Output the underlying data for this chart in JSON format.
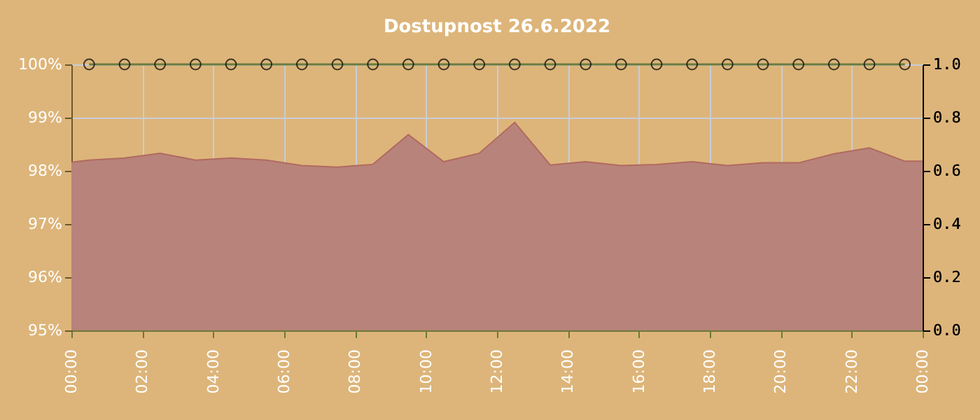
{
  "chart_data": {
    "type": "area",
    "title": "Dostupnost 26.6.2022",
    "x": [
      0,
      0.5,
      1.5,
      2.5,
      3.5,
      4.5,
      5.5,
      6.5,
      7.5,
      8.5,
      9.5,
      10.5,
      11.5,
      12.5,
      13.5,
      14.5,
      15.5,
      16.5,
      17.5,
      18.5,
      19.5,
      20.5,
      21.5,
      22.5,
      23.5,
      24
    ],
    "series": [
      {
        "color": "#b8837a",
        "values": [
          98.16,
          98.2,
          98.24,
          98.33,
          98.2,
          98.24,
          98.2,
          98.1,
          98.07,
          98.12,
          98.68,
          98.17,
          98.33,
          98.91,
          98.11,
          98.17,
          98.1,
          98.12,
          98.17,
          98.1,
          98.15,
          98.15,
          98.32,
          98.43,
          98.18,
          98.18
        ]
      },
      {
        "type": "line",
        "axis": "y2",
        "marker": "circle",
        "color": "#6b7a3a",
        "x": [
          0.5,
          1.5,
          2.5,
          3.5,
          4.5,
          5.5,
          6.5,
          7.5,
          8.5,
          9.5,
          10.5,
          11.5,
          12.5,
          13.5,
          14.5,
          15.5,
          16.5,
          17.5,
          18.5,
          19.5,
          20.5,
          21.5,
          22.5,
          23.5
        ],
        "values": [
          1,
          1,
          1,
          1,
          1,
          1,
          1,
          1,
          1,
          1,
          1,
          1,
          1,
          1,
          1,
          1,
          1,
          1,
          1,
          1,
          1,
          1,
          1,
          1
        ]
      }
    ],
    "xlim": [
      0,
      24
    ],
    "xticks": [
      {
        "value": 0,
        "label": "00:00"
      },
      {
        "value": 2,
        "label": "02:00"
      },
      {
        "value": 4,
        "label": "04:00"
      },
      {
        "value": 6,
        "label": "06:00"
      },
      {
        "value": 8,
        "label": "08:00"
      },
      {
        "value": 10,
        "label": "10:00"
      },
      {
        "value": 12,
        "label": "12:00"
      },
      {
        "value": 14,
        "label": "14:00"
      },
      {
        "value": 16,
        "label": "16:00"
      },
      {
        "value": 18,
        "label": "18:00"
      },
      {
        "value": 20,
        "label": "20:00"
      },
      {
        "value": 22,
        "label": "22:00"
      },
      {
        "value": 24,
        "label": "00:00"
      }
    ],
    "ylim": [
      95,
      100
    ],
    "yticks": [
      {
        "value": 95,
        "label": "95%"
      },
      {
        "value": 96,
        "label": "96%"
      },
      {
        "value": 97,
        "label": "97%"
      },
      {
        "value": 98,
        "label": "98%"
      },
      {
        "value": 99,
        "label": "99%"
      },
      {
        "value": 100,
        "label": "100%"
      }
    ],
    "y2lim": [
      0,
      1
    ],
    "y2ticks": [
      {
        "value": 0,
        "label": "0.0"
      },
      {
        "value": 0.2,
        "label": "0.2"
      },
      {
        "value": 0.4,
        "label": "0.4"
      },
      {
        "value": 0.6,
        "label": "0.6"
      },
      {
        "value": 0.8,
        "label": "0.8"
      },
      {
        "value": 1,
        "label": "1.0"
      }
    ],
    "grid": true
  }
}
